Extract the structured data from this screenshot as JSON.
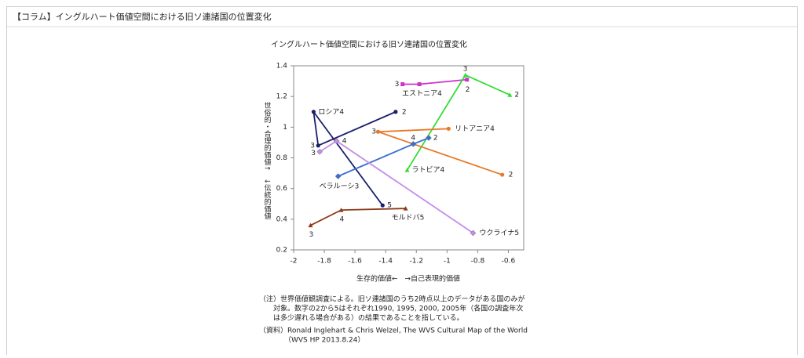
{
  "header": {
    "title": "【コラム】イングルハート価値空間における旧ソ連諸国の位置変化"
  },
  "chart_data": {
    "type": "line",
    "title": "イングルハート価値空間における旧ソ連諸国の位置変化",
    "x_label": "生存的価値←　→自己表現的価値",
    "y_label": "世俗的・合理的価値↑　↓伝統的価値",
    "xlim": [
      -2,
      -0.5
    ],
    "xticks": [
      -2,
      -1.8,
      -1.6,
      -1.4,
      -1.2,
      -1,
      -0.8,
      -0.6
    ],
    "ylim": [
      0.2,
      1.4
    ],
    "yticks": [
      0.2,
      0.4,
      0.6,
      0.8,
      1,
      1.2,
      1.4
    ],
    "series": [
      {
        "color": "#1a1f6e",
        "marker": "circle",
        "x": [
          -1.335,
          -1.84,
          -1.87,
          -1.42
        ],
        "values": [
          1.1,
          0.88,
          1.1,
          0.49
        ],
        "point_labels": [
          "2",
          "3",
          "ロシア4",
          "5"
        ]
      },
      {
        "color": "#cc33cc",
        "marker": "square",
        "x": [
          -1.29,
          -1.18,
          -0.87
        ],
        "values": [
          1.28,
          1.28,
          1.31
        ],
        "point_labels": [
          "3",
          "エストニア4",
          "2"
        ]
      },
      {
        "color": "#33dd33",
        "marker": "triangle",
        "x": [
          -0.59,
          -0.88,
          -1.26
        ],
        "values": [
          1.21,
          1.34,
          0.72
        ],
        "point_labels": [
          "2",
          "3",
          "ラトビア4"
        ]
      },
      {
        "color": "#e8792a",
        "marker": "circle",
        "x": [
          -0.64,
          -1.45,
          -0.99
        ],
        "values": [
          0.69,
          0.97,
          0.99
        ],
        "point_labels": [
          "2",
          "3",
          "リトアニア4"
        ]
      },
      {
        "color": "#3a6fd0",
        "marker": "diamond",
        "x": [
          -1.71,
          -1.22,
          -1.12
        ],
        "values": [
          0.68,
          0.89,
          0.93
        ],
        "point_labels": [
          "ベラルーシ3",
          "4",
          "2"
        ]
      },
      {
        "color": "#c38ee8",
        "marker": "diamond",
        "x": [
          -1.83,
          -1.72,
          -0.83
        ],
        "values": [
          0.84,
          0.91,
          0.31
        ],
        "point_labels": [
          "3",
          "4",
          "ウクライナ5"
        ]
      },
      {
        "color": "#8b3a1a",
        "marker": "triangle",
        "x": [
          -1.89,
          -1.69,
          -1.27
        ],
        "values": [
          0.36,
          0.46,
          0.47
        ],
        "point_labels": [
          "3",
          "4",
          "モルドバ5"
        ]
      }
    ]
  },
  "notes": [
    "（注）世界価値観調査による。旧ソ連諸国のうち2時点以上のデータがある国のみが",
    "対象。数字の2から5はそれぞれ1990, 1995, 2000, 2005年（各国の調査年次",
    "は多少遅れる場合がある）の結果であることを指している。",
    "（資料）Ronald Inglehart & Chris Welzel, The WVS Cultural Map of the World",
    "（WVS HP 2013.8.24）"
  ]
}
